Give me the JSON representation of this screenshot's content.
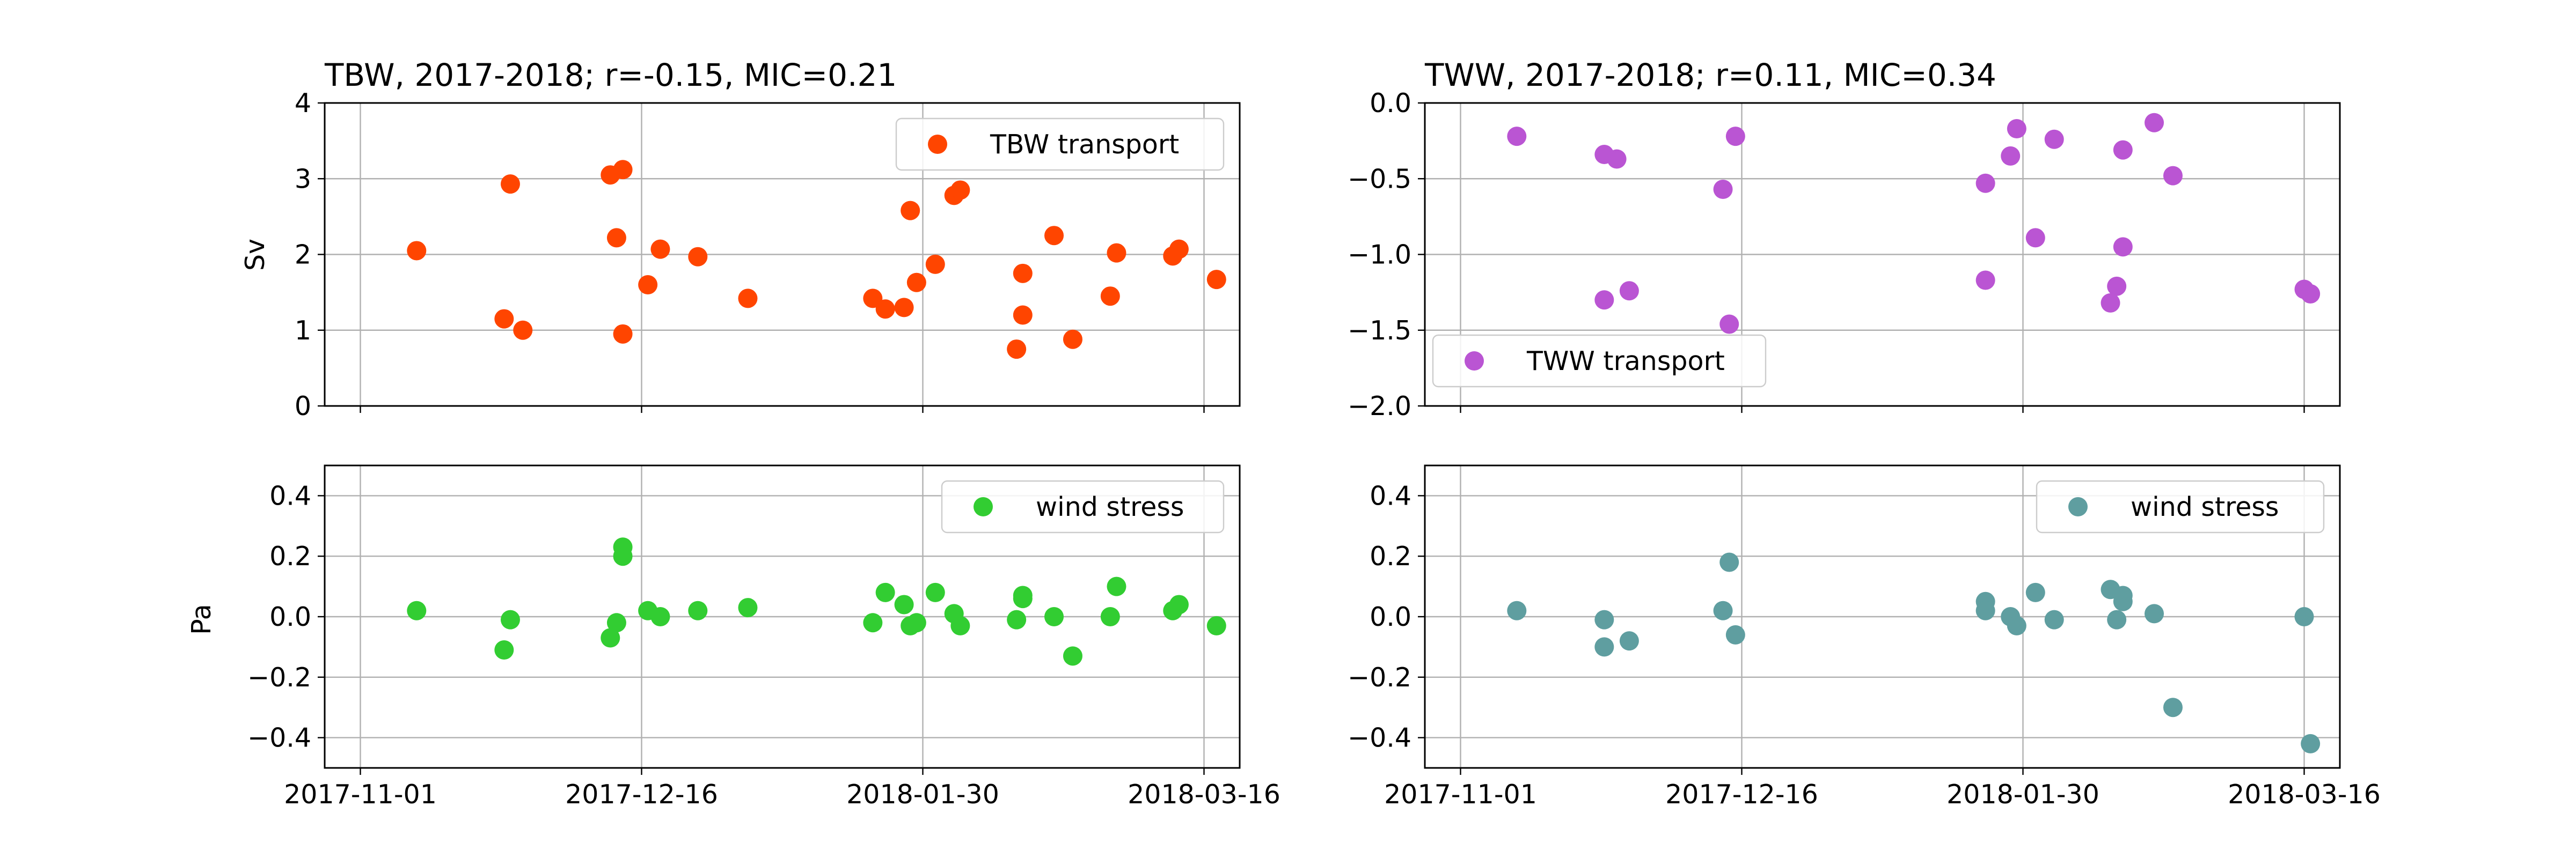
{
  "chart_data": [
    {
      "type": "scatter",
      "title": "TBW, 2017-2018; r=-0.15, MIC=0.21",
      "xlabel": "",
      "ylabel": "Sv",
      "xlim": [
        "2017-11-01",
        "2018-03-16"
      ],
      "ylim": [
        0,
        4
      ],
      "x_tick_labels": [
        "2017-11-01",
        "2017-12-16",
        "2018-01-30",
        "2018-03-16"
      ],
      "y_tick_labels": [
        "0",
        "1",
        "2",
        "3",
        "4"
      ],
      "grid": true,
      "legend_position": "upper right",
      "series": [
        {
          "name": "TBW transport",
          "color": "#ff4500",
          "points": [
            {
              "x": "2017-11-10",
              "y": 2.05
            },
            {
              "x": "2017-11-24",
              "y": 1.15
            },
            {
              "x": "2017-11-25",
              "y": 2.93
            },
            {
              "x": "2017-11-27",
              "y": 1.0
            },
            {
              "x": "2017-12-11",
              "y": 3.05
            },
            {
              "x": "2017-12-12",
              "y": 2.22
            },
            {
              "x": "2017-12-13",
              "y": 3.12
            },
            {
              "x": "2017-12-13",
              "y": 0.95
            },
            {
              "x": "2017-12-17",
              "y": 1.6
            },
            {
              "x": "2017-12-19",
              "y": 2.07
            },
            {
              "x": "2017-12-25",
              "y": 1.97
            },
            {
              "x": "2018-01-02",
              "y": 1.42
            },
            {
              "x": "2018-01-22",
              "y": 1.42
            },
            {
              "x": "2018-01-24",
              "y": 1.28
            },
            {
              "x": "2018-01-27",
              "y": 1.3
            },
            {
              "x": "2018-01-28",
              "y": 2.58
            },
            {
              "x": "2018-01-29",
              "y": 1.63
            },
            {
              "x": "2018-02-01",
              "y": 1.87
            },
            {
              "x": "2018-02-04",
              "y": 2.78
            },
            {
              "x": "2018-02-05",
              "y": 2.85
            },
            {
              "x": "2018-02-14",
              "y": 0.75
            },
            {
              "x": "2018-02-15",
              "y": 1.75
            },
            {
              "x": "2018-02-15",
              "y": 1.2
            },
            {
              "x": "2018-02-20",
              "y": 2.25
            },
            {
              "x": "2018-02-23",
              "y": 0.88
            },
            {
              "x": "2018-03-01",
              "y": 1.45
            },
            {
              "x": "2018-03-02",
              "y": 2.02
            },
            {
              "x": "2018-03-11",
              "y": 1.98
            },
            {
              "x": "2018-03-12",
              "y": 2.07
            },
            {
              "x": "2018-03-18",
              "y": 1.67
            }
          ]
        }
      ]
    },
    {
      "type": "scatter",
      "title": "TWW, 2017-2018; r=0.11, MIC=0.34",
      "xlabel": "",
      "ylabel": "",
      "xlim": [
        "2017-11-01",
        "2018-03-16"
      ],
      "ylim": [
        -2.0,
        0.0
      ],
      "x_tick_labels": [
        "2017-11-01",
        "2017-12-16",
        "2018-01-30",
        "2018-03-16"
      ],
      "y_tick_labels": [
        "−2.0",
        "−1.5",
        "−1.0",
        "−0.5",
        "0.0"
      ],
      "grid": true,
      "legend_position": "lower left",
      "series": [
        {
          "name": "TWW transport",
          "color": "#ba55d3",
          "points": [
            {
              "x": "2017-11-10",
              "y": -0.22
            },
            {
              "x": "2017-11-24",
              "y": -1.3
            },
            {
              "x": "2017-11-24",
              "y": -0.34
            },
            {
              "x": "2017-11-26",
              "y": -0.37
            },
            {
              "x": "2017-11-28",
              "y": -1.24
            },
            {
              "x": "2017-12-13",
              "y": -0.57
            },
            {
              "x": "2017-12-14",
              "y": -1.46
            },
            {
              "x": "2017-12-15",
              "y": -0.22
            },
            {
              "x": "2018-01-24",
              "y": -1.17
            },
            {
              "x": "2018-01-24",
              "y": -0.53
            },
            {
              "x": "2018-01-28",
              "y": -0.35
            },
            {
              "x": "2018-01-29",
              "y": -0.17
            },
            {
              "x": "2018-02-01",
              "y": -0.89
            },
            {
              "x": "2018-02-04",
              "y": -0.24
            },
            {
              "x": "2018-02-13",
              "y": -1.32
            },
            {
              "x": "2018-02-14",
              "y": -1.21
            },
            {
              "x": "2018-02-15",
              "y": -0.31
            },
            {
              "x": "2018-02-15",
              "y": -0.95
            },
            {
              "x": "2018-02-20",
              "y": -0.13
            },
            {
              "x": "2018-02-23",
              "y": -0.48
            },
            {
              "x": "2018-03-16",
              "y": -1.23
            },
            {
              "x": "2018-03-17",
              "y": -1.26
            }
          ]
        }
      ]
    },
    {
      "type": "scatter",
      "title": "",
      "xlabel": "",
      "ylabel": "Pa",
      "xlim": [
        "2017-11-01",
        "2018-03-16"
      ],
      "ylim": [
        -0.5,
        0.5
      ],
      "x_tick_labels": [
        "2017-11-01",
        "2017-12-16",
        "2018-01-30",
        "2018-03-16"
      ],
      "y_tick_labels": [
        "−0.4",
        "−0.2",
        "0.0",
        "0.2",
        "0.4"
      ],
      "grid": true,
      "legend_position": "upper right",
      "series": [
        {
          "name": "wind stress",
          "color": "#32cd32",
          "points": [
            {
              "x": "2017-11-10",
              "y": 0.02
            },
            {
              "x": "2017-11-24",
              "y": -0.11
            },
            {
              "x": "2017-11-25",
              "y": -0.01
            },
            {
              "x": "2017-12-11",
              "y": -0.07
            },
            {
              "x": "2017-12-12",
              "y": -0.02
            },
            {
              "x": "2017-12-13",
              "y": 0.23
            },
            {
              "x": "2017-12-13",
              "y": 0.2
            },
            {
              "x": "2017-12-17",
              "y": 0.02
            },
            {
              "x": "2017-12-19",
              "y": 0.0
            },
            {
              "x": "2017-12-25",
              "y": 0.02
            },
            {
              "x": "2018-01-02",
              "y": 0.03
            },
            {
              "x": "2018-01-22",
              "y": -0.02
            },
            {
              "x": "2018-01-24",
              "y": 0.08
            },
            {
              "x": "2018-01-27",
              "y": 0.04
            },
            {
              "x": "2018-01-28",
              "y": -0.03
            },
            {
              "x": "2018-01-29",
              "y": -0.02
            },
            {
              "x": "2018-02-01",
              "y": 0.08
            },
            {
              "x": "2018-02-04",
              "y": 0.01
            },
            {
              "x": "2018-02-05",
              "y": -0.03
            },
            {
              "x": "2018-02-14",
              "y": -0.01
            },
            {
              "x": "2018-02-15",
              "y": 0.07
            },
            {
              "x": "2018-02-15",
              "y": 0.06
            },
            {
              "x": "2018-02-20",
              "y": 0.0
            },
            {
              "x": "2018-02-23",
              "y": -0.13
            },
            {
              "x": "2018-03-01",
              "y": 0.0
            },
            {
              "x": "2018-03-02",
              "y": 0.1
            },
            {
              "x": "2018-03-11",
              "y": 0.02
            },
            {
              "x": "2018-03-12",
              "y": 0.04
            },
            {
              "x": "2018-03-18",
              "y": -0.03
            }
          ]
        }
      ]
    },
    {
      "type": "scatter",
      "title": "",
      "xlabel": "",
      "ylabel": "",
      "xlim": [
        "2017-11-01",
        "2018-03-16"
      ],
      "ylim": [
        -0.5,
        0.5
      ],
      "x_tick_labels": [
        "2017-11-01",
        "2017-12-16",
        "2018-01-30",
        "2018-03-16"
      ],
      "y_tick_labels": [
        "−0.4",
        "−0.2",
        "0.0",
        "0.2",
        "0.4"
      ],
      "grid": true,
      "legend_position": "upper right",
      "series": [
        {
          "name": "wind stress",
          "color": "#5f9ea0",
          "points": [
            {
              "x": "2017-11-10",
              "y": 0.02
            },
            {
              "x": "2017-11-24",
              "y": -0.1
            },
            {
              "x": "2017-11-24",
              "y": -0.01
            },
            {
              "x": "2017-11-28",
              "y": -0.08
            },
            {
              "x": "2017-12-13",
              "y": 0.02
            },
            {
              "x": "2017-12-14",
              "y": 0.18
            },
            {
              "x": "2017-12-15",
              "y": -0.06
            },
            {
              "x": "2018-01-24",
              "y": 0.05
            },
            {
              "x": "2018-01-24",
              "y": 0.02
            },
            {
              "x": "2018-01-28",
              "y": 0.0
            },
            {
              "x": "2018-01-29",
              "y": -0.03
            },
            {
              "x": "2018-02-01",
              "y": 0.08
            },
            {
              "x": "2018-02-04",
              "y": -0.01
            },
            {
              "x": "2018-02-13",
              "y": 0.09
            },
            {
              "x": "2018-02-14",
              "y": -0.01
            },
            {
              "x": "2018-02-15",
              "y": 0.07
            },
            {
              "x": "2018-02-15",
              "y": 0.05
            },
            {
              "x": "2018-02-20",
              "y": 0.01
            },
            {
              "x": "2018-02-23",
              "y": -0.3
            },
            {
              "x": "2018-03-16",
              "y": 0.0
            },
            {
              "x": "2018-03-17",
              "y": -0.42
            }
          ]
        }
      ]
    }
  ]
}
